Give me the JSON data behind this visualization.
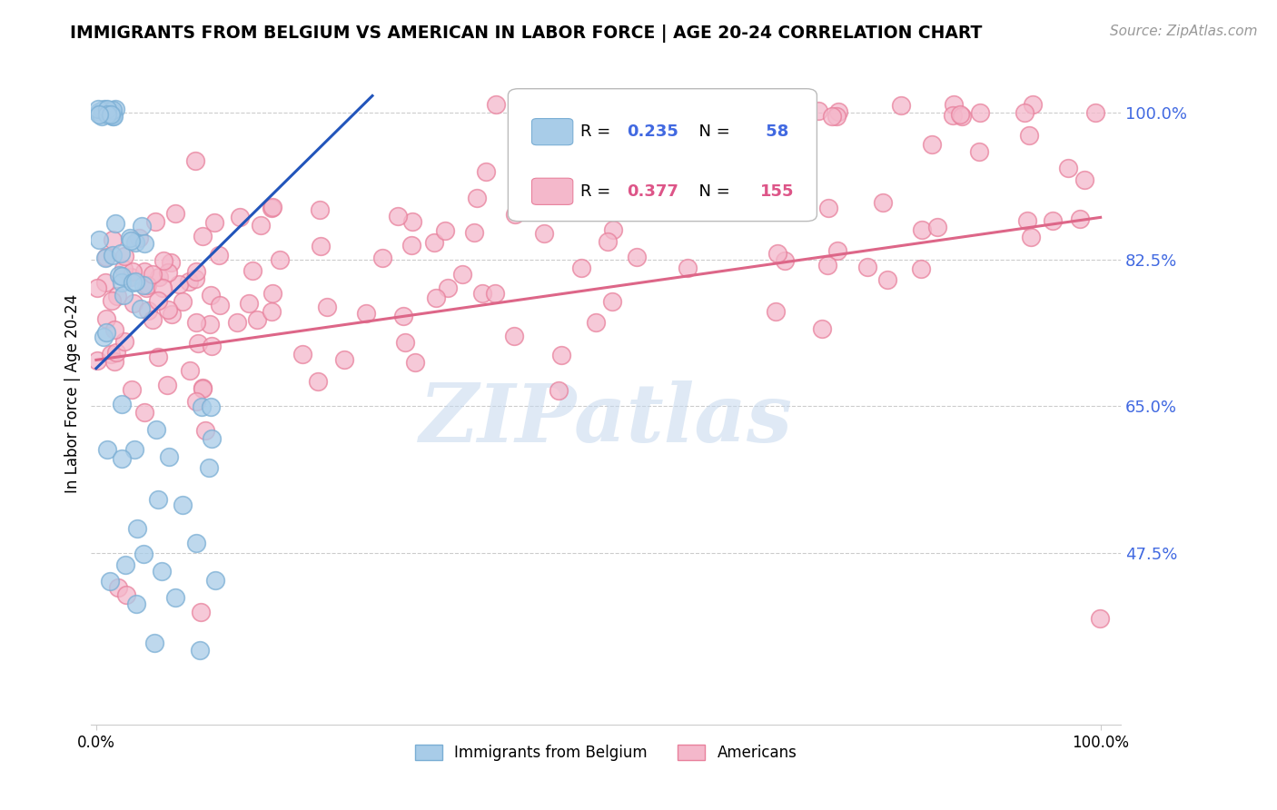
{
  "title": "IMMIGRANTS FROM BELGIUM VS AMERICAN IN LABOR FORCE | AGE 20-24 CORRELATION CHART",
  "source": "Source: ZipAtlas.com",
  "ylabel": "In Labor Force | Age 20-24",
  "watermark": "ZIPatlas",
  "belgium_color": "#a8cce8",
  "belgium_edge_color": "#7aaed4",
  "american_color": "#f4b8cb",
  "american_edge_color": "#e8809c",
  "belgium_line_color": "#2255bb",
  "american_line_color": "#dd6688",
  "legend_blue_fill": "#a8cce8",
  "legend_pink_fill": "#f4b8cb",
  "ytick_color": "#4169e1",
  "yticks": [
    1.0,
    0.825,
    0.65,
    0.475
  ],
  "ytick_labels": [
    "100.0%",
    "82.5%",
    "65.0%",
    "47.5%"
  ],
  "xlim": [
    -0.005,
    1.02
  ],
  "ylim": [
    0.27,
    1.06
  ],
  "bel_line_x0": 0.0,
  "bel_line_y0": 0.695,
  "bel_line_x1": 0.275,
  "bel_line_y1": 1.02,
  "am_line_x0": 0.0,
  "am_line_y0": 0.705,
  "am_line_x1": 1.0,
  "am_line_y1": 0.875,
  "grid_color": "#cccccc",
  "legend_r1": "R = 0.235",
  "legend_n1": "N =  58",
  "legend_r2": "R = 0.377",
  "legend_n2": "N = 155",
  "legend_value_color": "#4169e1",
  "legend_n2_color": "#dd5588"
}
